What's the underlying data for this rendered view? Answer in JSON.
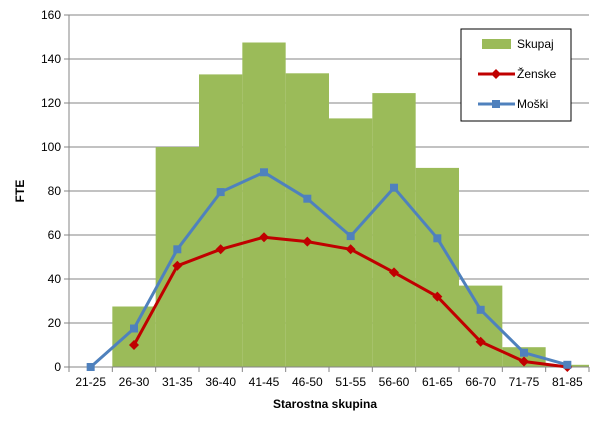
{
  "chart_data": {
    "type": "bar+line",
    "xlabel": "Starostna skupina",
    "ylabel": "FTE",
    "ylim": [
      0,
      160
    ],
    "yticks": [
      0,
      20,
      40,
      60,
      80,
      100,
      120,
      140,
      160
    ],
    "grid": "horizontal",
    "legend_position": "top-right",
    "categories": [
      "21-25",
      "26-30",
      "31-35",
      "36-40",
      "41-45",
      "46-50",
      "51-55",
      "56-60",
      "61-65",
      "66-70",
      "71-75",
      "81-85"
    ],
    "series": [
      {
        "name": "Skupaj",
        "kind": "bar",
        "color": "#9bbb59",
        "values": [
          0,
          27.5,
          100,
          133,
          147.5,
          133.5,
          113,
          124.5,
          90.5,
          37,
          9,
          1
        ]
      },
      {
        "name": "Ženske",
        "kind": "line",
        "marker": "diamond",
        "color": "#c00000",
        "values": [
          null,
          10,
          46,
          53.5,
          59,
          57,
          53.5,
          43,
          32,
          11.5,
          2.5,
          0
        ]
      },
      {
        "name": "Moški",
        "kind": "line",
        "marker": "square",
        "color": "#4f81bd",
        "values": [
          0,
          17.5,
          53.5,
          79.5,
          88.5,
          76.5,
          59.5,
          81.5,
          58.5,
          26,
          6.5,
          1
        ]
      }
    ]
  }
}
